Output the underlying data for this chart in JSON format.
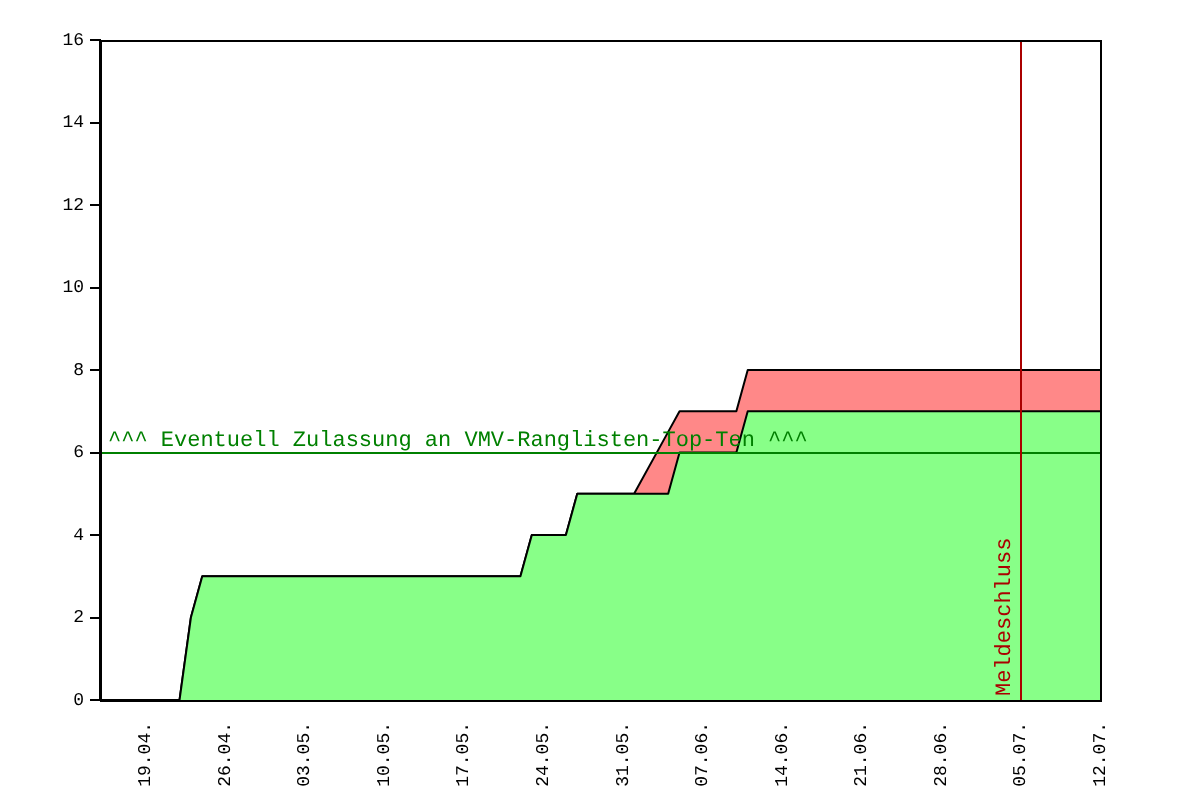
{
  "chart_data": {
    "type": "area",
    "stacked": true,
    "x": [
      "--04-15",
      "--04-22",
      "--04-23",
      "--04-24",
      "--05-22",
      "--05-23",
      "--05-26",
      "--05-27",
      "--06-01",
      "--06-04",
      "--06-05",
      "--06-10",
      "--06-11",
      "--07-12"
    ],
    "series": [
      {
        "color": "#88ff88",
        "values": [
          0,
          0,
          2,
          3,
          3,
          4,
          4,
          5,
          5,
          5,
          6,
          6,
          7,
          7
        ]
      },
      {
        "color": "#ff8888",
        "values": [
          0,
          0,
          0,
          0,
          0,
          0,
          0,
          0,
          0,
          1.5,
          1,
          1,
          1,
          1
        ]
      }
    ],
    "xlim": [
      "--04-15",
      "--07-12"
    ],
    "xticks": [
      {
        "value": "--04-19",
        "label": "19.04."
      },
      {
        "value": "--04-26",
        "label": "26.04."
      },
      {
        "value": "--05-03",
        "label": "03.05."
      },
      {
        "value": "--05-10",
        "label": "10.05."
      },
      {
        "value": "--05-17",
        "label": "17.05."
      },
      {
        "value": "--05-24",
        "label": "24.05."
      },
      {
        "value": "--05-31",
        "label": "31.05."
      },
      {
        "value": "--06-07",
        "label": "07.06."
      },
      {
        "value": "--06-14",
        "label": "14.06."
      },
      {
        "value": "--06-21",
        "label": "21.06."
      },
      {
        "value": "--06-28",
        "label": "28.06."
      },
      {
        "value": "--07-05",
        "label": "05.07."
      },
      {
        "value": "--07-12",
        "label": "12.07."
      }
    ],
    "ylim": [
      0,
      16
    ],
    "yticks": [
      0,
      2,
      4,
      6,
      8,
      10,
      12,
      14,
      16
    ],
    "grid": false,
    "legend": false,
    "ref_lines": [
      {
        "axis": "y",
        "value": 6,
        "label": "^^^ Eventuell Zulassung an VMV-Ranglisten-Top-Ten ^^^",
        "color": "#008000"
      },
      {
        "axis": "x",
        "value": "--07-05",
        "label": "Meldeschluss",
        "color": "#aa0000"
      }
    ]
  }
}
